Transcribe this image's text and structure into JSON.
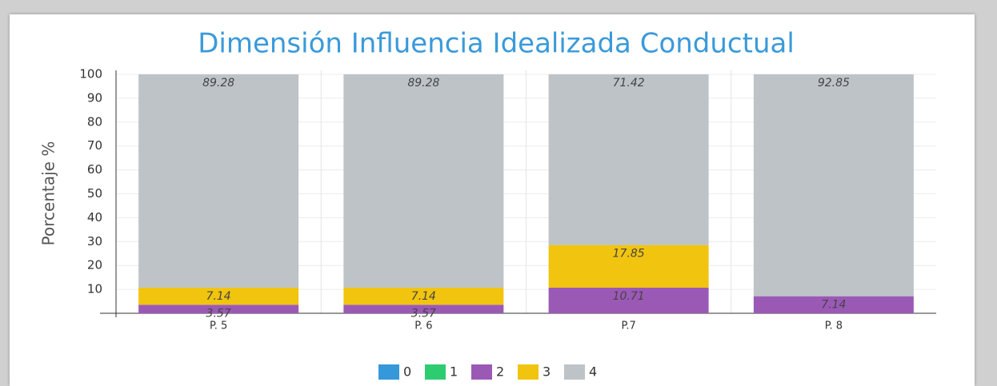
{
  "chart_data": {
    "type": "bar",
    "stacked": true,
    "title": "Dimensión Influencia Idealizada Conductual",
    "y_label": "Porcentaje %",
    "categories": [
      "P. 5",
      "P. 6",
      "P.7",
      "P. 8"
    ],
    "series": [
      {
        "name": "0",
        "color": "#3498db",
        "values": [
          0,
          0,
          0,
          0
        ]
      },
      {
        "name": "1",
        "color": "#2ecc71",
        "values": [
          0,
          0,
          0,
          0
        ]
      },
      {
        "name": "2",
        "color": "#9b59b6",
        "values": [
          3.57,
          3.57,
          10.71,
          7.14
        ]
      },
      {
        "name": "3",
        "color": "#f1c40f",
        "values": [
          7.14,
          7.14,
          17.85,
          0
        ]
      },
      {
        "name": "4",
        "color": "#bdc3c7",
        "values": [
          89.28,
          89.28,
          71.42,
          92.85
        ]
      }
    ],
    "ylim": [
      0,
      100
    ],
    "yticks": [
      10,
      20,
      30,
      40,
      50,
      60,
      70,
      80,
      90,
      100
    ],
    "grid": true
  }
}
